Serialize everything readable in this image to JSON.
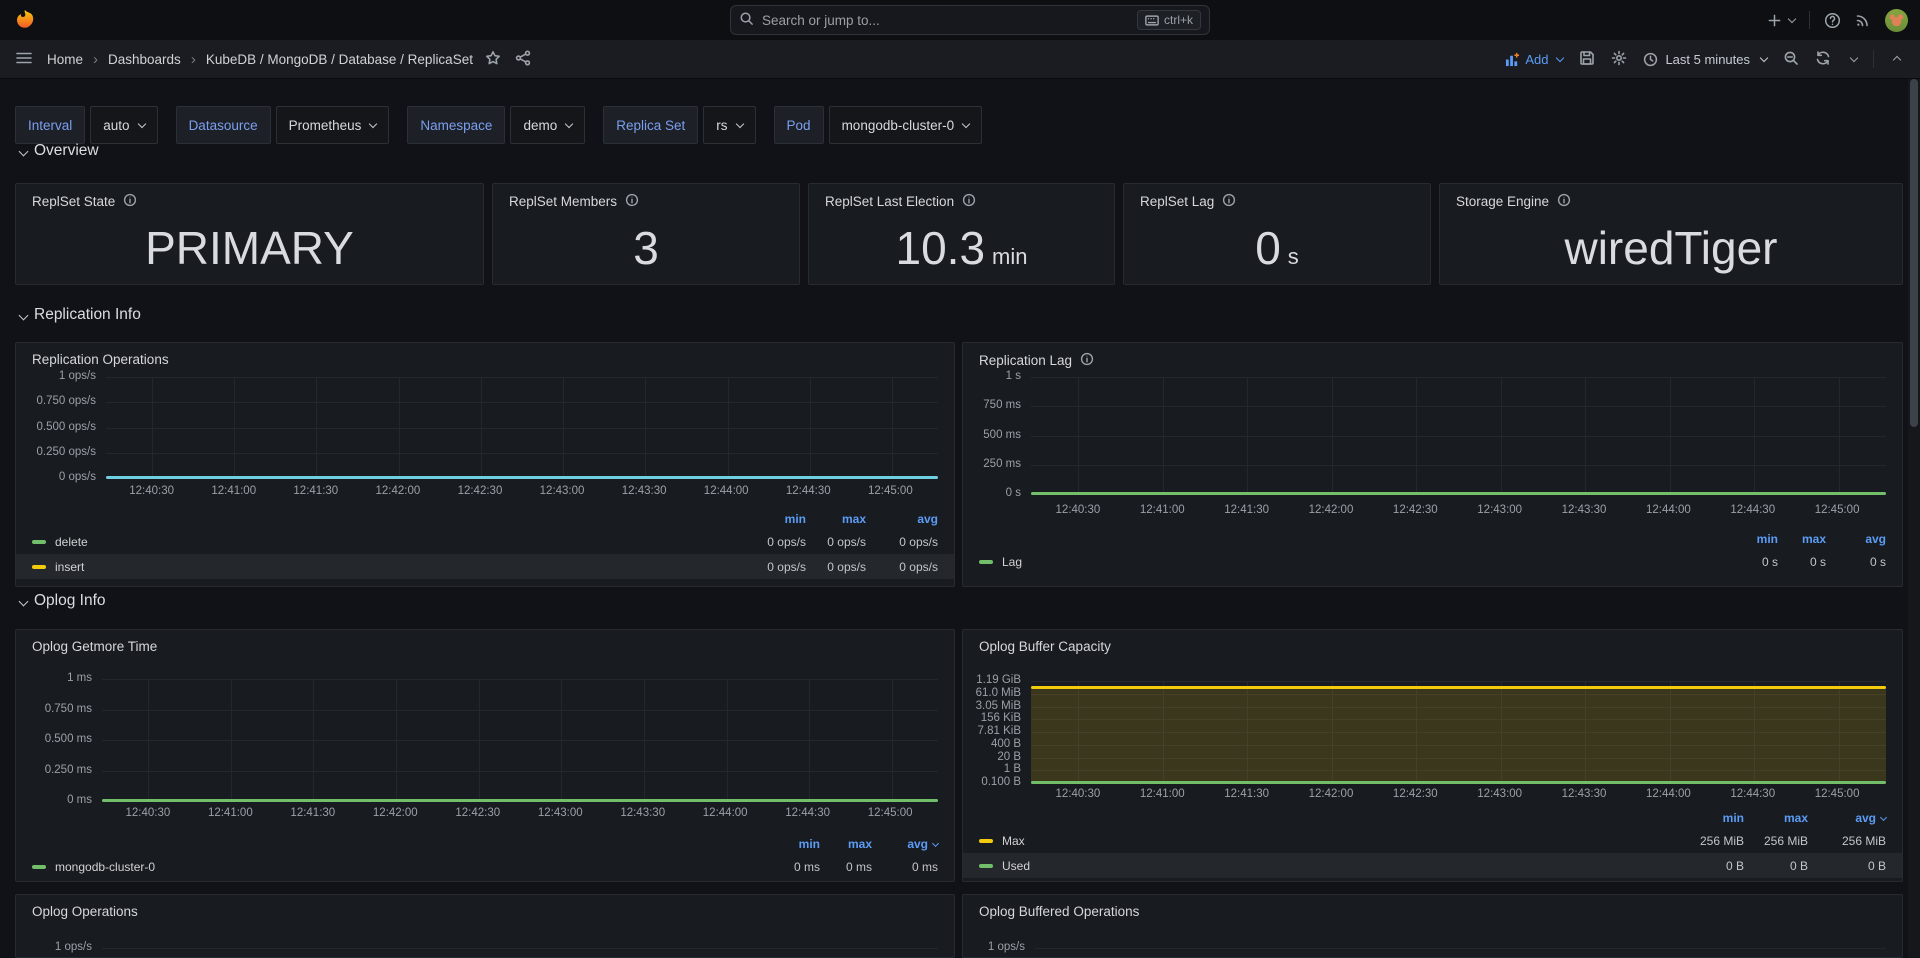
{
  "colors": {
    "accent_blue": "#5b9cf6",
    "green": "#73bf69",
    "yellow": "#f2cc0c",
    "teal": "#6ed0e0",
    "panel_bg": "#181b1f",
    "page_bg": "#111217",
    "yellow_fill": "rgba(242,204,12,0.16)"
  },
  "topnav": {
    "search_placeholder": "Search or jump to...",
    "shortcut": "ctrl+k"
  },
  "breadcrumb": {
    "items": [
      "Home",
      "Dashboards",
      "KubeDB / MongoDB / Database / ReplicaSet"
    ]
  },
  "toolbar": {
    "add_label": "Add",
    "time_range": "Last 5 minutes"
  },
  "variables": [
    {
      "label": "Interval",
      "value": "auto"
    },
    {
      "label": "Datasource",
      "value": "Prometheus"
    },
    {
      "label": "Namespace",
      "value": "demo"
    },
    {
      "label": "Replica Set",
      "value": "rs"
    },
    {
      "label": "Pod",
      "value": "mongodb-cluster-0"
    }
  ],
  "sections": {
    "overview": "Overview",
    "replication": "Replication Info",
    "oplog": "Oplog Info"
  },
  "stats": [
    {
      "title": "ReplSet State",
      "value": "PRIMARY",
      "unit": ""
    },
    {
      "title": "ReplSet Members",
      "value": "3",
      "unit": ""
    },
    {
      "title": "ReplSet Last Election",
      "value": "10.3",
      "unit": "min"
    },
    {
      "title": "ReplSet Lag",
      "value": "0",
      "unit": "s"
    },
    {
      "title": "Storage Engine",
      "value": "wiredTiger",
      "unit": ""
    }
  ],
  "time_axis": [
    "12:40:30",
    "12:41:00",
    "12:41:30",
    "12:42:00",
    "12:42:30",
    "12:43:00",
    "12:43:30",
    "12:44:00",
    "12:44:30",
    "12:45:00"
  ],
  "charts": {
    "replication_operations": {
      "title": "Replication Operations",
      "info": false,
      "y_labels": [
        "1 ops/s",
        "0.750 ops/s",
        "0.500 ops/s",
        "0.250 ops/s",
        "0 ops/s"
      ],
      "lines": [
        {
          "color": "#6ed0e0",
          "frac": 0,
          "fill": false,
          "w": 3
        }
      ],
      "legend": {
        "header": [
          "min",
          "max",
          "avg"
        ],
        "avg_sort": false,
        "rows": [
          {
            "name": "delete",
            "color": "#73bf69",
            "values": [
              "0 ops/s",
              "0 ops/s",
              "0 ops/s"
            ],
            "highlight": false
          },
          {
            "name": "insert",
            "color": "#f2cc0c",
            "values": [
              "0 ops/s",
              "0 ops/s",
              "0 ops/s"
            ],
            "highlight": true
          }
        ]
      },
      "chart_data": {
        "type": "line",
        "ylabel_unit": "ops/s",
        "ylim": [
          0,
          1
        ],
        "grid": true,
        "x": [
          "12:40:30",
          "12:41:00",
          "12:41:30",
          "12:42:00",
          "12:42:30",
          "12:43:00",
          "12:43:30",
          "12:44:00",
          "12:44:30",
          "12:45:00"
        ],
        "series": [
          {
            "name": "delete",
            "values": [
              0,
              0,
              0,
              0,
              0,
              0,
              0,
              0,
              0,
              0
            ]
          },
          {
            "name": "insert",
            "values": [
              0,
              0,
              0,
              0,
              0,
              0,
              0,
              0,
              0,
              0
            ]
          }
        ]
      }
    },
    "replication_lag": {
      "title": "Replication Lag",
      "info": true,
      "y_labels": [
        "1 s",
        "750 ms",
        "500 ms",
        "250 ms",
        "0 s"
      ],
      "lines": [
        {
          "color": "#73bf69",
          "frac": 0,
          "fill": false,
          "w": 3
        }
      ],
      "legend": {
        "header": [
          "min",
          "max",
          "avg"
        ],
        "avg_sort": false,
        "rows": [
          {
            "name": "Lag",
            "color": "#73bf69",
            "values": [
              "0 s",
              "0 s",
              "0 s"
            ],
            "highlight": false
          }
        ]
      },
      "chart_data": {
        "type": "line",
        "ylabel_unit": "s",
        "ylim": [
          0,
          1
        ],
        "grid": true,
        "x": [
          "12:40:30",
          "12:41:00",
          "12:41:30",
          "12:42:00",
          "12:42:30",
          "12:43:00",
          "12:43:30",
          "12:44:00",
          "12:44:30",
          "12:45:00"
        ],
        "series": [
          {
            "name": "Lag",
            "values": [
              0,
              0,
              0,
              0,
              0,
              0,
              0,
              0,
              0,
              0
            ]
          }
        ]
      }
    },
    "oplog_getmore_time": {
      "title": "Oplog Getmore Time",
      "info": false,
      "y_labels": [
        "1 ms",
        "0.750 ms",
        "0.500 ms",
        "0.250 ms",
        "0 ms"
      ],
      "lines": [
        {
          "color": "#73bf69",
          "frac": 0,
          "fill": false,
          "w": 3
        }
      ],
      "legend": {
        "header": [
          "min",
          "max",
          "avg"
        ],
        "avg_sort": true,
        "rows": [
          {
            "name": "mongodb-cluster-0",
            "color": "#73bf69",
            "values": [
              "0 ms",
              "0 ms",
              "0 ms"
            ],
            "highlight": false
          }
        ]
      },
      "chart_data": {
        "type": "line",
        "ylabel_unit": "ms",
        "ylim": [
          0,
          1
        ],
        "grid": true,
        "x": [
          "12:40:30",
          "12:41:00",
          "12:41:30",
          "12:42:00",
          "12:42:30",
          "12:43:00",
          "12:43:30",
          "12:44:00",
          "12:44:30",
          "12:45:00"
        ],
        "series": [
          {
            "name": "mongodb-cluster-0",
            "values": [
              0,
              0,
              0,
              0,
              0,
              0,
              0,
              0,
              0,
              0
            ]
          }
        ]
      }
    },
    "oplog_buffer_capacity": {
      "title": "Oplog Buffer Capacity",
      "info": false,
      "y_labels": [
        "1.19 GiB",
        "61.0 MiB",
        "3.05 MiB",
        "156 KiB",
        "7.81 KiB",
        "400 B",
        "20 B",
        "1 B",
        "0.100 B"
      ],
      "lines": [
        {
          "color": "#f2cc0c",
          "frac": 0.93,
          "fill": true,
          "w": 3
        },
        {
          "color": "#73bf69",
          "frac": 0,
          "fill": false,
          "w": 3
        }
      ],
      "legend": {
        "header": [
          "min",
          "max",
          "avg"
        ],
        "avg_sort": true,
        "rows": [
          {
            "name": "Max",
            "color": "#f2cc0c",
            "values": [
              "256 MiB",
              "256 MiB",
              "256 MiB"
            ],
            "highlight": false
          },
          {
            "name": "Used",
            "color": "#73bf69",
            "values": [
              "0 B",
              "0 B",
              "0 B"
            ],
            "highlight": true
          }
        ]
      },
      "chart_data": {
        "type": "line",
        "ylabel_unit": "bytes",
        "yscale": "log",
        "ylim_labels": [
          "0.100 B",
          "1.19 GiB"
        ],
        "grid": true,
        "x": [
          "12:40:30",
          "12:41:00",
          "12:41:30",
          "12:42:00",
          "12:42:30",
          "12:43:00",
          "12:43:30",
          "12:44:00",
          "12:44:30",
          "12:45:00"
        ],
        "series": [
          {
            "name": "Max",
            "values": [
              268435456,
              268435456,
              268435456,
              268435456,
              268435456,
              268435456,
              268435456,
              268435456,
              268435456,
              268435456
            ],
            "display": "256 MiB"
          },
          {
            "name": "Used",
            "values": [
              0,
              0,
              0,
              0,
              0,
              0,
              0,
              0,
              0,
              0
            ],
            "display": "0 B"
          }
        ]
      }
    },
    "oplog_operations": {
      "title": "Oplog Operations",
      "partial": true,
      "y_labels": [
        "1 ops/s"
      ],
      "chart_data": {
        "type": "line",
        "visible_y_label": "1 ops/s"
      }
    },
    "oplog_buffered_operations": {
      "title": "Oplog Buffered Operations",
      "partial": true,
      "y_labels": [
        "1 ops/s"
      ],
      "chart_data": {
        "type": "line",
        "visible_y_label": "1 ops/s"
      }
    }
  }
}
